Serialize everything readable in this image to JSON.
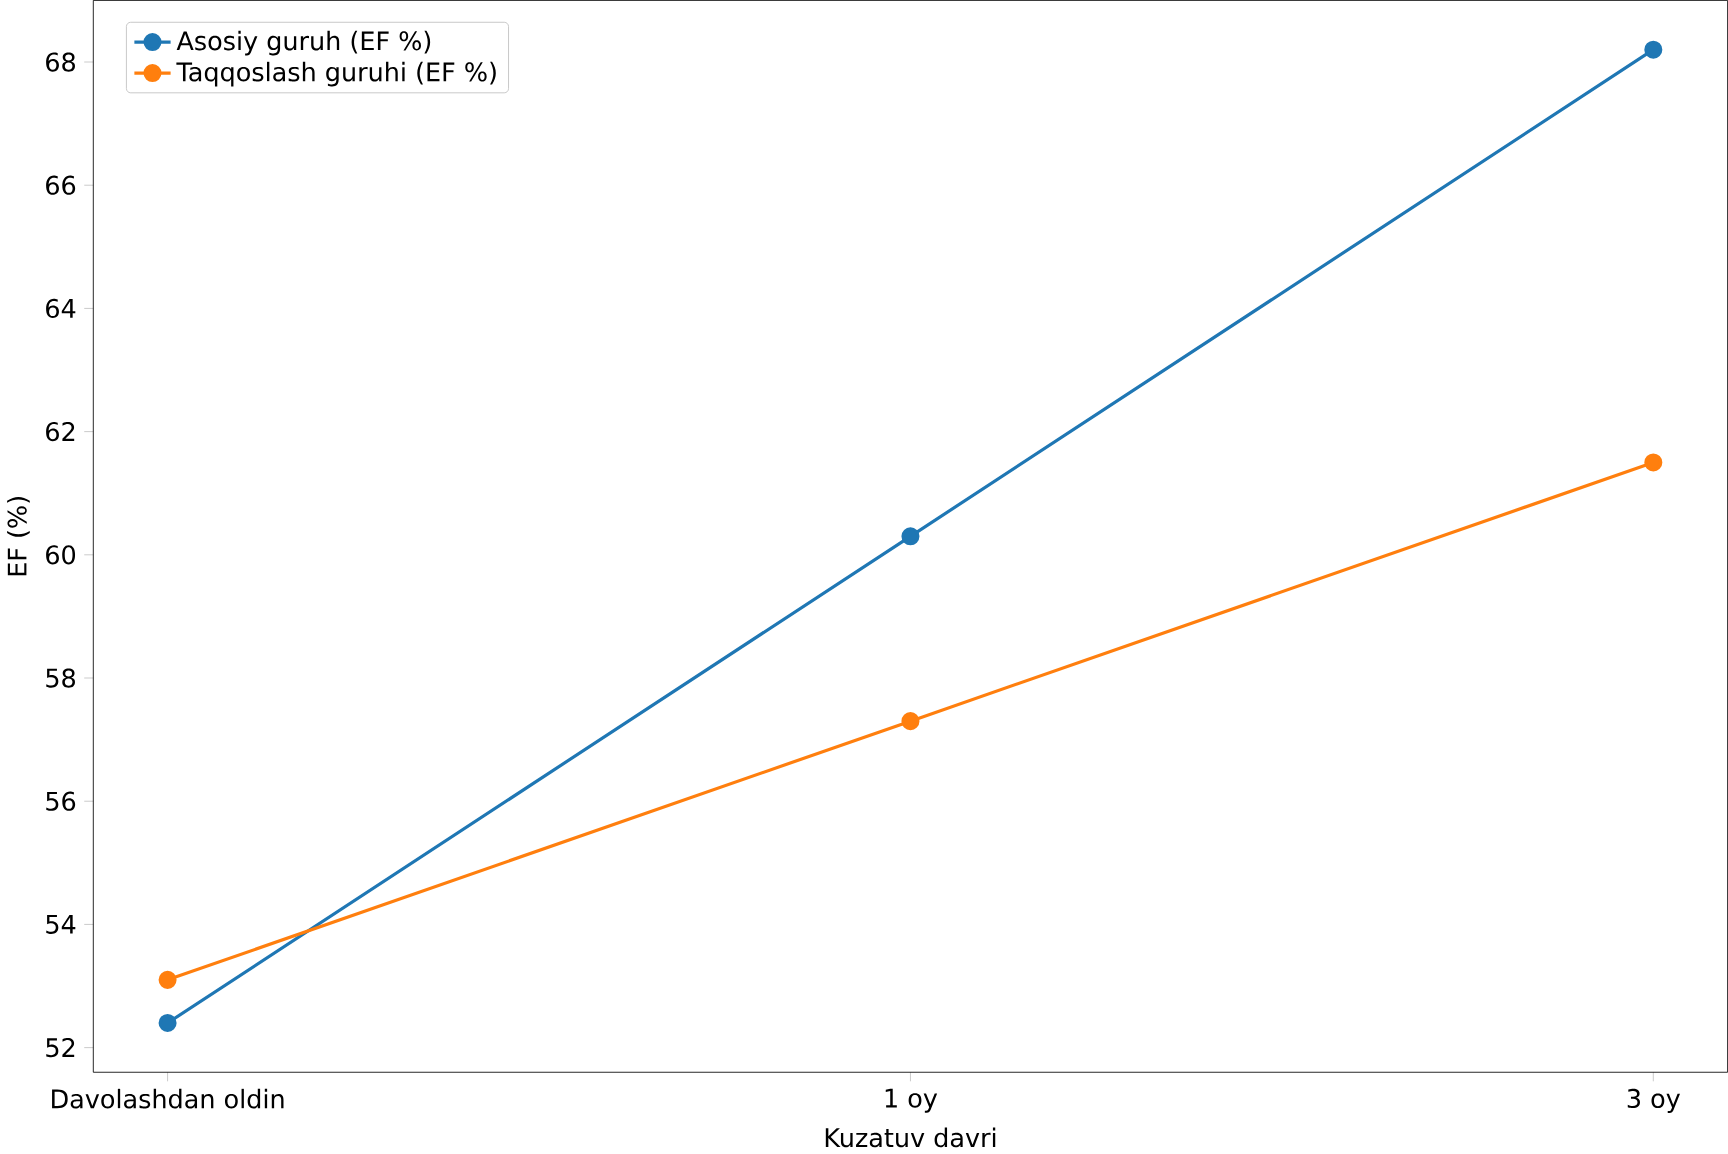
{
  "chart_data": {
    "type": "line",
    "xlabel": "Kuzatuv davri",
    "ylabel": "EF (%)",
    "categories": [
      "Davolashdan oldin",
      "1 oy",
      "3 oy"
    ],
    "series": [
      {
        "name": "Asosiy guruh (EF %)",
        "color": "#1f77b4",
        "values": [
          52.4,
          60.3,
          68.2
        ]
      },
      {
        "name": "Taqqoslash guruhi (EF %)",
        "color": "#ff7f0e",
        "values": [
          53.1,
          57.3,
          61.5
        ]
      }
    ],
    "ylim": [
      51.6,
      69.0
    ],
    "yticks": [
      52,
      54,
      56,
      58,
      60,
      62,
      64,
      66,
      68
    ],
    "legend": "top left",
    "marker": "circle",
    "line_style": "solid",
    "grid": false
  }
}
